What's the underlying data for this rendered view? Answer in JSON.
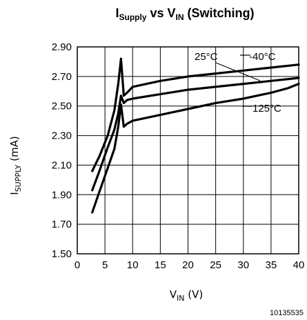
{
  "chart_data": {
    "type": "line",
    "title": {
      "main": "I",
      "main_sub": "Supply",
      "mid": " vs V",
      "mid_sub": "IN",
      "tail": " (Switching)"
    },
    "xlabel": {
      "main": "V",
      "sub": "IN",
      "tail": " (V)"
    },
    "ylabel": {
      "main": "I",
      "sub": "SUPPLY",
      "tail": " (mA)"
    },
    "xlim": [
      0,
      40
    ],
    "ylim": [
      1.5,
      2.9
    ],
    "xticks": [
      "0",
      "5",
      "10",
      "15",
      "20",
      "25",
      "30",
      "35",
      "40"
    ],
    "yticks": [
      "1.50",
      "1.70",
      "1.90",
      "2.10",
      "2.30",
      "2.50",
      "2.70",
      "2.90"
    ],
    "grid": true,
    "series": [
      {
        "name": "-40°C",
        "x": [
          2.7,
          4,
          5.5,
          6.7,
          7.4,
          7.9,
          8.4,
          9,
          10,
          15,
          20,
          25,
          30,
          35,
          40
        ],
        "y": [
          2.06,
          2.16,
          2.3,
          2.47,
          2.65,
          2.82,
          2.57,
          2.59,
          2.63,
          2.67,
          2.7,
          2.72,
          2.74,
          2.76,
          2.78
        ]
      },
      {
        "name": "25°C",
        "x": [
          2.7,
          4,
          5.5,
          6.7,
          7.4,
          7.9,
          8.4,
          9,
          10,
          15,
          20,
          25,
          30,
          35,
          40
        ],
        "y": [
          1.93,
          2.06,
          2.22,
          2.34,
          2.45,
          2.57,
          2.52,
          2.54,
          2.55,
          2.58,
          2.61,
          2.63,
          2.65,
          2.67,
          2.69
        ]
      },
      {
        "name": "125°C",
        "x": [
          2.7,
          4,
          5.5,
          6.7,
          7.4,
          7.9,
          8.4,
          9,
          10,
          15,
          20,
          25,
          30,
          35,
          38,
          40
        ],
        "y": [
          1.78,
          1.92,
          2.08,
          2.21,
          2.36,
          2.51,
          2.36,
          2.38,
          2.4,
          2.44,
          2.48,
          2.52,
          2.55,
          2.59,
          2.62,
          2.65
        ]
      }
    ],
    "annotations": [
      "25°C",
      "-40°C",
      "125°C"
    ]
  },
  "figure_id": "10135535"
}
